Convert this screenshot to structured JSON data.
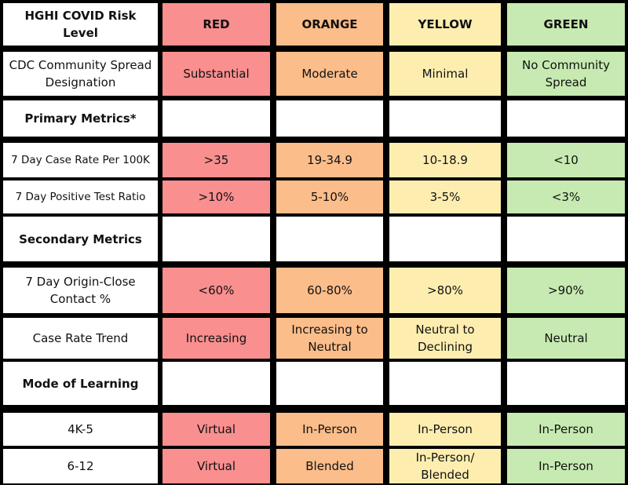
{
  "colors": {
    "red": "#f98f8f",
    "orange": "#fbbd8a",
    "yellow": "#fdeeb0",
    "green": "#c6eab1",
    "background": "#000000"
  },
  "header": {
    "label": "HGHI COVID Risk Level",
    "red": "RED",
    "orange": "ORANGE",
    "yellow": "YELLOW",
    "green": "GREEN"
  },
  "rows": {
    "cdc": {
      "label": "CDC Community Spread Designation",
      "red": "Substantial",
      "orange": "Moderate",
      "yellow": "Minimal",
      "green": "No Community Spread"
    },
    "primary": {
      "label": "Primary Metrics*"
    },
    "case_rate": {
      "label": "7 Day Case Rate Per 100K",
      "red": ">35",
      "orange": "19-34.9",
      "yellow": "10-18.9",
      "green": "<10"
    },
    "positive_ratio": {
      "label": "7 Day Positive Test Ratio",
      "red": ">10%",
      "orange": "5-10%",
      "yellow": "3-5%",
      "green": "<3%"
    },
    "secondary": {
      "label": "Secondary Metrics"
    },
    "close_contact": {
      "label": "7 Day Origin-Close Contact %",
      "red": "<60%",
      "orange": "60-80%",
      "yellow": ">80%",
      "green": ">90%"
    },
    "trend": {
      "label": "Case Rate Trend",
      "red": "Increasing",
      "orange": "Increasing to Neutral",
      "yellow": "Neutral to Declining",
      "green": "Neutral"
    },
    "mode": {
      "label": "Mode of Learning"
    },
    "k5": {
      "label": "4K-5",
      "red": "Virtual",
      "orange": "In-Person",
      "yellow": "In-Person",
      "green": "In-Person"
    },
    "g612": {
      "label": "6-12",
      "red": "Virtual",
      "orange": "Blended",
      "yellow": "In-Person/ Blended",
      "green": "In-Person"
    }
  }
}
